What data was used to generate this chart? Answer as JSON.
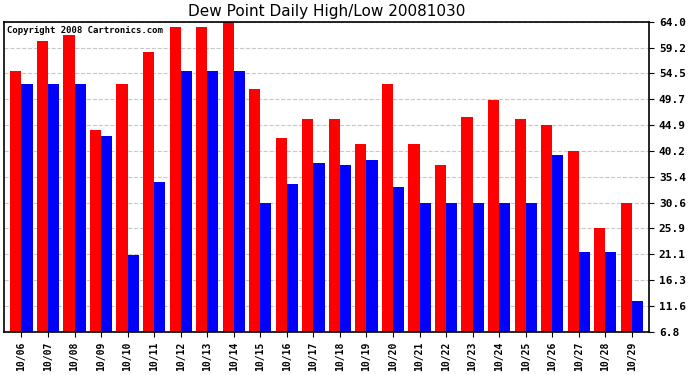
{
  "title": "Dew Point Daily High/Low 20081030",
  "copyright": "Copyright 2008 Cartronics.com",
  "dates": [
    "10/06",
    "10/07",
    "10/08",
    "10/09",
    "10/10",
    "10/11",
    "10/12",
    "10/13",
    "10/14",
    "10/15",
    "10/16",
    "10/17",
    "10/18",
    "10/19",
    "10/20",
    "10/21",
    "10/22",
    "10/23",
    "10/24",
    "10/25",
    "10/26",
    "10/27",
    "10/28",
    "10/29"
  ],
  "highs": [
    55.0,
    60.5,
    61.5,
    44.0,
    52.5,
    58.5,
    63.0,
    63.0,
    64.0,
    51.5,
    42.5,
    46.0,
    46.0,
    41.5,
    52.5,
    41.5,
    37.5,
    46.5,
    49.5,
    46.0,
    45.0,
    40.2,
    26.0,
    30.5
  ],
  "lows": [
    52.5,
    52.5,
    52.5,
    43.0,
    21.0,
    34.5,
    55.0,
    55.0,
    55.0,
    30.5,
    34.0,
    38.0,
    37.5,
    38.5,
    33.5,
    30.5,
    30.5,
    30.5,
    30.5,
    30.5,
    39.5,
    21.5,
    21.5,
    12.5
  ],
  "high_color": "#ff0000",
  "low_color": "#0000ff",
  "bg_color": "#ffffff",
  "grid_color": "#c8c8c8",
  "yticks": [
    6.8,
    11.6,
    16.3,
    21.1,
    25.9,
    30.6,
    35.4,
    40.2,
    44.9,
    49.7,
    54.5,
    59.2,
    64.0
  ],
  "ymin": 6.8,
  "ymax": 64.0,
  "figwidth": 6.9,
  "figheight": 3.75,
  "dpi": 100
}
